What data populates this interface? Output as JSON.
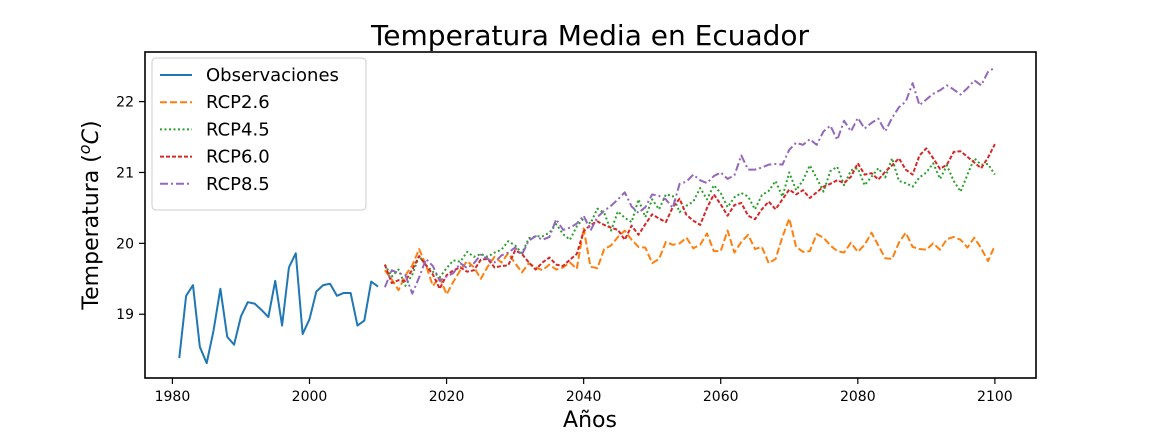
{
  "chart_data": {
    "type": "line",
    "title": "Temperatura Media en Ecuador",
    "xlabel": "Años",
    "ylabel_main": "Temperatura (",
    "ylabel_sup": "o",
    "ylabel_unit": "C",
    "ylabel_close": ")",
    "xlim": [
      1976,
      2106
    ],
    "ylim": [
      18.1,
      22.7
    ],
    "xticks": [
      1980,
      2000,
      2020,
      2040,
      2060,
      2080,
      2100
    ],
    "yticks": [
      19,
      20,
      21,
      22
    ],
    "grid": false,
    "legend_position": "top-left",
    "series": [
      {
        "name": "Observaciones",
        "color": "#1f77b4",
        "dash": "solid",
        "x": [
          1981,
          1982,
          1983,
          1984,
          1985,
          1986,
          1987,
          1988,
          1989,
          1990,
          1991,
          1992,
          1993,
          1994,
          1995,
          1996,
          1997,
          1998,
          1999,
          2000,
          2001,
          2002,
          2003,
          2004,
          2005,
          2006,
          2007,
          2008,
          2009,
          2010
        ],
        "y": [
          18.38,
          19.26,
          19.41,
          18.54,
          18.31,
          18.77,
          19.36,
          18.68,
          18.57,
          18.97,
          19.17,
          19.15,
          19.06,
          18.96,
          19.47,
          18.84,
          19.66,
          19.86,
          18.72,
          18.93,
          19.32,
          19.41,
          19.43,
          19.26,
          19.3,
          19.3,
          18.84,
          18.91,
          19.46,
          19.39
        ]
      },
      {
        "name": "RCP2.6",
        "color": "#ff7f0e",
        "dash": "dashed",
        "x": [
          2011,
          2012,
          2013,
          2014,
          2015,
          2016,
          2017,
          2018,
          2019,
          2020,
          2021,
          2022,
          2023,
          2024,
          2025,
          2026,
          2027,
          2028,
          2029,
          2030,
          2031,
          2032,
          2033,
          2034,
          2035,
          2036,
          2037,
          2038,
          2039,
          2040,
          2041,
          2042,
          2043,
          2044,
          2045,
          2046,
          2047,
          2048,
          2049,
          2050,
          2051,
          2052,
          2053,
          2054,
          2055,
          2056,
          2057,
          2058,
          2059,
          2060,
          2061,
          2062,
          2063,
          2064,
          2065,
          2066,
          2067,
          2068,
          2069,
          2070,
          2071,
          2072,
          2073,
          2074,
          2075,
          2076,
          2077,
          2078,
          2079,
          2080,
          2081,
          2082,
          2083,
          2084,
          2085,
          2086,
          2087,
          2088,
          2089,
          2090,
          2091,
          2092,
          2093,
          2094,
          2095,
          2096,
          2097,
          2098,
          2099,
          2100
        ],
        "y": [
          19.62,
          19.49,
          19.34,
          19.55,
          19.69,
          19.92,
          19.69,
          19.4,
          19.52,
          19.28,
          19.46,
          19.62,
          19.75,
          19.66,
          19.5,
          19.67,
          19.81,
          19.73,
          19.86,
          19.72,
          19.59,
          19.72,
          19.66,
          19.62,
          19.7,
          19.63,
          19.66,
          19.73,
          19.64,
          20.21,
          19.67,
          19.65,
          19.92,
          19.97,
          20.09,
          20.18,
          20.05,
          19.95,
          19.94,
          19.72,
          19.78,
          20.02,
          19.98,
          20.0,
          20.08,
          19.93,
          19.98,
          20.14,
          19.89,
          19.89,
          20.18,
          19.87,
          20.02,
          20.12,
          19.92,
          19.95,
          19.72,
          19.78,
          20.09,
          20.35,
          19.95,
          19.88,
          19.89,
          20.13,
          20.08,
          19.97,
          19.89,
          19.87,
          20.01,
          19.88,
          19.98,
          20.15,
          19.97,
          19.79,
          19.78,
          20.01,
          20.15,
          19.95,
          19.92,
          19.91,
          20.0,
          19.91,
          20.06,
          20.09,
          20.05,
          19.94,
          20.08,
          19.93,
          19.75,
          19.97
        ]
      },
      {
        "name": "RCP4.5",
        "color": "#2ca02c",
        "dash": "dotted",
        "x": [
          2011,
          2012,
          2013,
          2014,
          2015,
          2016,
          2017,
          2018,
          2019,
          2020,
          2021,
          2022,
          2023,
          2024,
          2025,
          2026,
          2027,
          2028,
          2029,
          2030,
          2031,
          2032,
          2033,
          2034,
          2035,
          2036,
          2037,
          2038,
          2039,
          2040,
          2041,
          2042,
          2043,
          2044,
          2045,
          2046,
          2047,
          2048,
          2049,
          2050,
          2051,
          2052,
          2053,
          2054,
          2055,
          2056,
          2057,
          2058,
          2059,
          2060,
          2061,
          2062,
          2063,
          2064,
          2065,
          2066,
          2067,
          2068,
          2069,
          2070,
          2071,
          2072,
          2073,
          2074,
          2075,
          2076,
          2077,
          2078,
          2079,
          2080,
          2081,
          2082,
          2083,
          2084,
          2085,
          2086,
          2087,
          2088,
          2089,
          2090,
          2091,
          2092,
          2093,
          2094,
          2095,
          2096,
          2097,
          2098,
          2099,
          2100
        ],
        "y": [
          19.7,
          19.53,
          19.63,
          19.4,
          19.56,
          19.82,
          19.69,
          19.6,
          19.52,
          19.65,
          19.76,
          19.74,
          19.88,
          19.81,
          19.85,
          19.81,
          19.87,
          19.91,
          20.03,
          19.97,
          19.86,
          20.07,
          20.1,
          20.1,
          20.15,
          20.27,
          20.13,
          20.05,
          20.24,
          20.35,
          20.28,
          20.49,
          20.43,
          20.18,
          20.45,
          20.36,
          20.3,
          20.62,
          20.37,
          20.62,
          20.48,
          20.69,
          20.67,
          20.44,
          20.53,
          20.59,
          20.78,
          20.62,
          20.82,
          20.71,
          20.51,
          20.65,
          20.71,
          20.66,
          20.48,
          20.68,
          20.74,
          20.88,
          20.66,
          21.0,
          20.75,
          20.89,
          21.1,
          20.92,
          20.73,
          21.02,
          21.08,
          20.82,
          21.03,
          21.06,
          20.82,
          20.94,
          21.06,
          20.93,
          21.2,
          20.88,
          20.85,
          20.8,
          20.93,
          21.0,
          21.13,
          20.91,
          21.1,
          20.88,
          20.73,
          20.97,
          21.2,
          21.11,
          21.12,
          20.97
        ]
      },
      {
        "name": "RCP6.0",
        "color": "#d62728",
        "dash": "dense-dash",
        "x": [
          2011,
          2012,
          2013,
          2014,
          2015,
          2016,
          2017,
          2018,
          2019,
          2020,
          2021,
          2022,
          2023,
          2024,
          2025,
          2026,
          2027,
          2028,
          2029,
          2030,
          2031,
          2032,
          2033,
          2034,
          2035,
          2036,
          2037,
          2038,
          2039,
          2040,
          2041,
          2042,
          2043,
          2044,
          2045,
          2046,
          2047,
          2048,
          2049,
          2050,
          2051,
          2052,
          2053,
          2054,
          2055,
          2056,
          2057,
          2058,
          2059,
          2060,
          2061,
          2062,
          2063,
          2064,
          2065,
          2066,
          2067,
          2068,
          2069,
          2070,
          2071,
          2072,
          2073,
          2074,
          2075,
          2076,
          2077,
          2078,
          2079,
          2080,
          2081,
          2082,
          2083,
          2084,
          2085,
          2086,
          2087,
          2088,
          2089,
          2090,
          2091,
          2092,
          2093,
          2094,
          2095,
          2096,
          2097,
          2098,
          2099,
          2100
        ],
        "y": [
          19.7,
          19.44,
          19.48,
          19.47,
          19.63,
          19.82,
          19.69,
          19.56,
          19.36,
          19.55,
          19.62,
          19.66,
          19.6,
          19.62,
          19.77,
          19.78,
          19.66,
          19.68,
          19.69,
          19.9,
          19.85,
          19.73,
          19.63,
          19.73,
          19.8,
          19.7,
          19.68,
          19.77,
          19.85,
          20.17,
          20.26,
          20.31,
          20.26,
          20.22,
          20.19,
          20.05,
          20.25,
          20.12,
          20.27,
          20.41,
          20.35,
          20.3,
          20.51,
          20.63,
          20.4,
          20.32,
          20.26,
          20.5,
          20.69,
          20.55,
          20.39,
          20.54,
          20.57,
          20.39,
          20.34,
          20.48,
          20.59,
          20.48,
          20.62,
          20.76,
          20.69,
          20.75,
          20.64,
          20.72,
          20.8,
          20.84,
          20.89,
          20.85,
          20.94,
          21.13,
          20.97,
          20.99,
          20.9,
          21.01,
          21.1,
          21.2,
          21.04,
          20.97,
          21.24,
          21.34,
          21.2,
          21.05,
          21.11,
          21.29,
          21.3,
          21.22,
          21.14,
          21.06,
          21.21,
          21.4
        ]
      },
      {
        "name": "RCP8.5",
        "color": "#9467bd",
        "dash": "dashdot",
        "x": [
          2011,
          2012,
          2013,
          2014,
          2015,
          2016,
          2017,
          2018,
          2019,
          2020,
          2021,
          2022,
          2023,
          2024,
          2025,
          2026,
          2027,
          2028,
          2029,
          2030,
          2031,
          2032,
          2033,
          2034,
          2035,
          2036,
          2037,
          2038,
          2039,
          2040,
          2041,
          2042,
          2043,
          2044,
          2045,
          2046,
          2047,
          2048,
          2049,
          2050,
          2051,
          2052,
          2053,
          2054,
          2055,
          2056,
          2057,
          2058,
          2059,
          2060,
          2061,
          2062,
          2063,
          2064,
          2065,
          2066,
          2067,
          2068,
          2069,
          2070,
          2071,
          2072,
          2073,
          2074,
          2075,
          2076,
          2077,
          2078,
          2079,
          2080,
          2081,
          2082,
          2083,
          2084,
          2085,
          2086,
          2087,
          2088,
          2089,
          2090,
          2091,
          2092,
          2093,
          2094,
          2095,
          2096,
          2097,
          2098,
          2099,
          2100
        ],
        "y": [
          19.38,
          19.62,
          19.58,
          19.55,
          19.29,
          19.52,
          19.78,
          19.68,
          19.47,
          19.53,
          19.58,
          19.72,
          19.65,
          19.72,
          19.84,
          19.78,
          19.73,
          19.83,
          19.87,
          19.94,
          19.84,
          20.04,
          20.1,
          20.05,
          20.09,
          20.34,
          20.19,
          20.22,
          20.28,
          20.39,
          20.18,
          20.37,
          20.46,
          20.53,
          20.62,
          20.72,
          20.52,
          20.43,
          20.51,
          20.69,
          20.67,
          20.62,
          20.5,
          20.84,
          20.87,
          20.97,
          20.89,
          20.85,
          20.95,
          21.0,
          20.91,
          20.96,
          21.24,
          21.04,
          21.04,
          21.07,
          21.11,
          21.12,
          21.11,
          21.32,
          21.42,
          21.39,
          21.47,
          21.39,
          21.58,
          21.66,
          21.46,
          21.73,
          21.58,
          21.77,
          21.62,
          21.7,
          21.76,
          21.58,
          21.77,
          21.92,
          22.0,
          22.26,
          21.95,
          22.03,
          22.11,
          22.16,
          22.23,
          22.17,
          22.1,
          22.19,
          22.3,
          22.23,
          22.42,
          22.48
        ]
      }
    ]
  }
}
